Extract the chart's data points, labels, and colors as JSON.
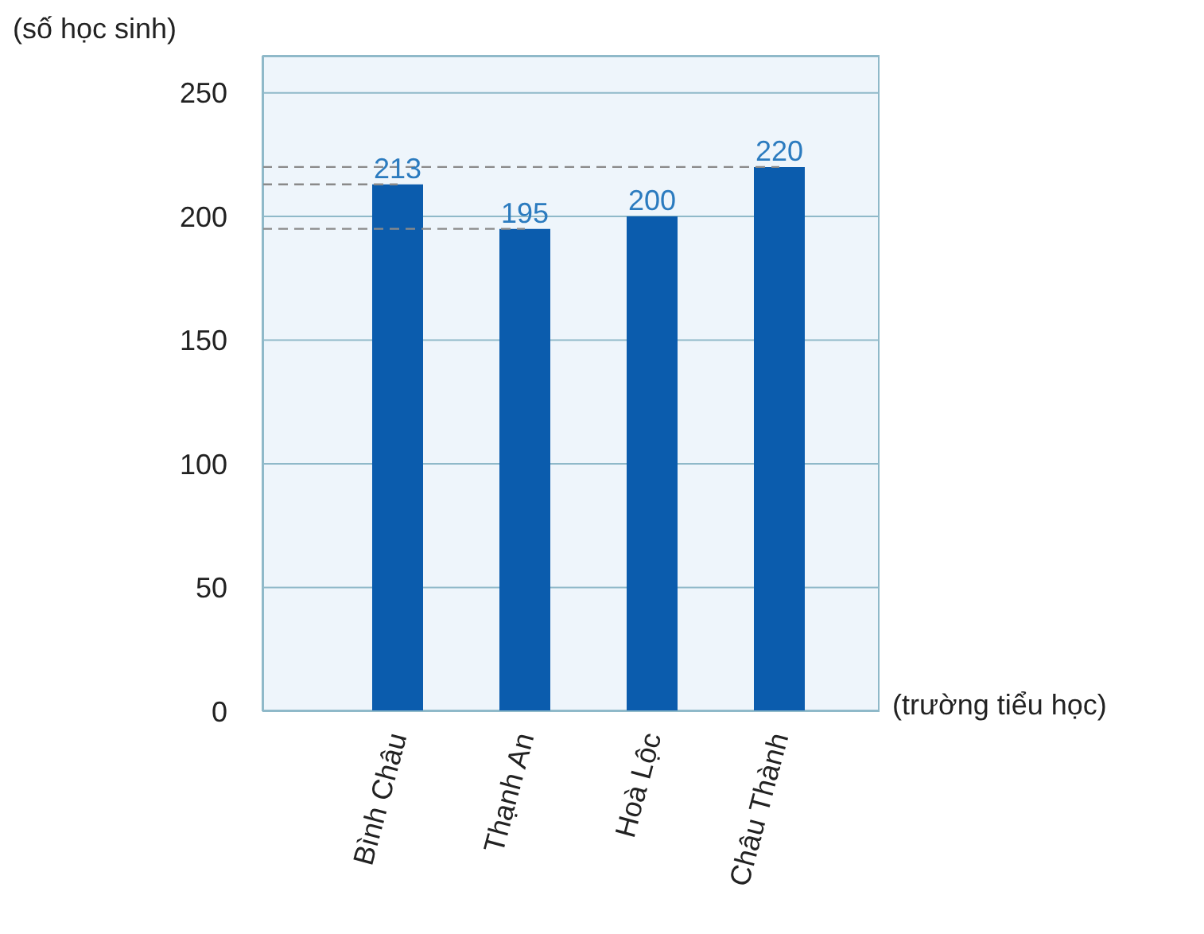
{
  "chart_data": {
    "type": "bar",
    "xlabel": "(trường tiểu học)",
    "ylabel": "(số học sinh)",
    "categories": [
      "Bình Châu",
      "Thạnh An",
      "Hoà Lộc",
      "Châu Thành"
    ],
    "values": [
      213,
      195,
      200,
      220
    ],
    "color": "#0b5cad",
    "ylim": [
      0,
      265
    ],
    "yticks": [
      0,
      50,
      100,
      150,
      200,
      250
    ],
    "grid": "y",
    "data_labels": true,
    "ref_lines": [
      {
        "axis": "y",
        "value": 220,
        "line_style": "dashed",
        "color": "#8a8a8a"
      },
      {
        "axis": "y",
        "value": 213,
        "line_style": "dashed",
        "color": "#8a8a8a"
      },
      {
        "axis": "y",
        "value": 195,
        "line_style": "dashed",
        "color": "#8a8a8a"
      }
    ]
  }
}
